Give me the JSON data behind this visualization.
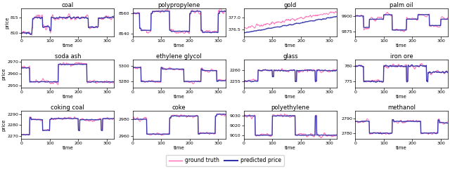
{
  "subplots": [
    {
      "title": "coal",
      "ylabel": "price",
      "xlabel": "time",
      "ylim": [
        809,
        818
      ],
      "yticks": [
        810,
        815
      ]
    },
    {
      "title": "polypropylene",
      "ylabel": "",
      "xlabel": "time",
      "ylim": [
        8537,
        8565
      ],
      "yticks": [
        8540,
        8560
      ]
    },
    {
      "title": "gold",
      "ylabel": "",
      "xlabel": "time",
      "ylim": [
        376.2,
        377.4
      ],
      "yticks": [
        376.5,
        377.0
      ]
    },
    {
      "title": "palm oil",
      "ylabel": "",
      "xlabel": "time",
      "ylim": [
        9868,
        9912
      ],
      "yticks": [
        9875,
        9900
      ]
    },
    {
      "title": "soda ash",
      "ylabel": "price",
      "xlabel": "time",
      "ylim": [
        2948,
        2972
      ],
      "yticks": [
        2950,
        2960,
        2970
      ]
    },
    {
      "title": "ethylene glycol",
      "ylabel": "",
      "xlabel": "time",
      "ylim": [
        5272,
        5308
      ],
      "yticks": [
        5280,
        5300
      ]
    },
    {
      "title": "glass",
      "ylabel": "",
      "xlabel": "time",
      "ylim": [
        2252,
        2265
      ],
      "yticks": [
        2255,
        2260
      ]
    },
    {
      "title": "iron ore",
      "ylabel": "",
      "xlabel": "time",
      "ylim": [
        773,
        782
      ],
      "yticks": [
        775,
        780
      ]
    },
    {
      "title": "coking coal",
      "ylabel": "price",
      "xlabel": "time",
      "ylim": [
        2267,
        2293
      ],
      "yticks": [
        2270,
        2280,
        2290
      ]
    },
    {
      "title": "coke",
      "ylabel": "",
      "xlabel": "time",
      "ylim": [
        2956,
        2990
      ],
      "yticks": [
        2960,
        2980
      ]
    },
    {
      "title": "polyethylene",
      "ylabel": "",
      "xlabel": "time",
      "ylim": [
        9006,
        9035
      ],
      "yticks": [
        9010,
        9020,
        9030
      ]
    },
    {
      "title": "methanol",
      "ylabel": "",
      "xlabel": "time",
      "ylim": [
        2776,
        2795
      ],
      "yticks": [
        2780,
        2790
      ]
    }
  ],
  "gt_color": "#FF69B4",
  "pred_color": "#3333AA",
  "gt_lw": 0.7,
  "pred_lw": 1.0,
  "nrows": 3,
  "ncols": 4,
  "n_points": 330,
  "legend_gt": "ground truth",
  "legend_pred": "predicted price",
  "figsize": [
    6.4,
    2.41
  ],
  "dpi": 100
}
